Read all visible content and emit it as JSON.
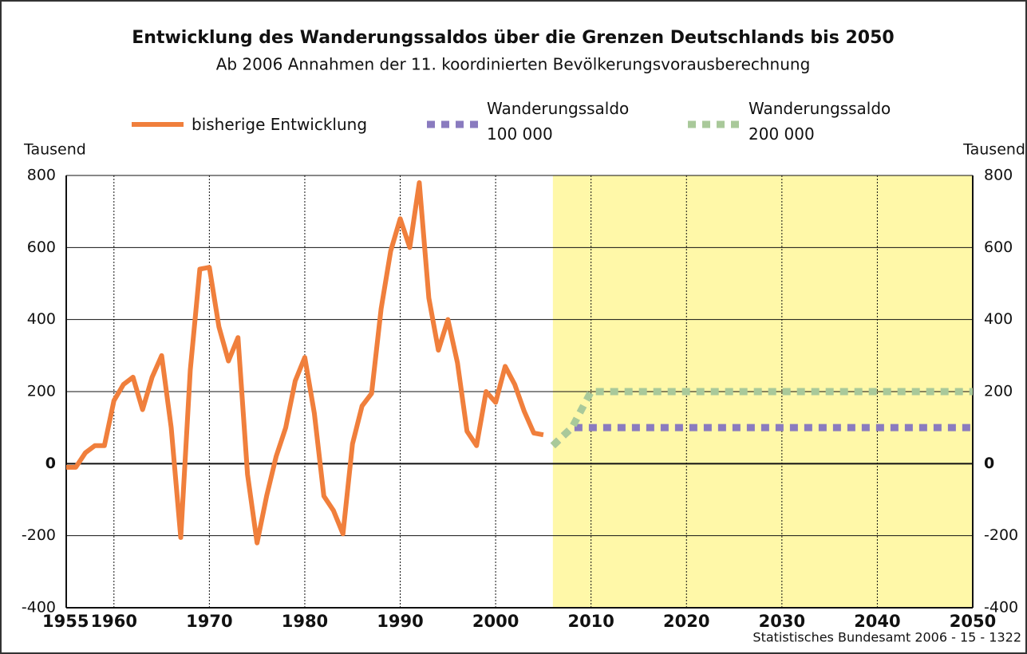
{
  "chart_data": {
    "type": "line",
    "title": "Entwicklung des Wanderungssaldos über die Grenzen Deutschlands bis 2050",
    "subtitle": "Ab 2006 Annahmen der 11. koordinierten Bevölkerungsvorausberechnung",
    "y_label": "Tausend",
    "y2_label": "Tausend",
    "source": "Statistisches Bundesamt 2006 - 15 - 1322",
    "xlim": [
      1955,
      2050
    ],
    "xticks": [
      1955,
      1960,
      1970,
      1980,
      1990,
      2000,
      2010,
      2020,
      2030,
      2040,
      2050
    ],
    "ylim": [
      -400,
      800
    ],
    "yticks": [
      -400,
      -200,
      0,
      200,
      400,
      600,
      800
    ],
    "y2lim": [
      -400,
      800
    ],
    "y2ticks": [
      -400,
      -200,
      0,
      200,
      400,
      600,
      800
    ],
    "grid": true,
    "highlight_xlim": [
      2006,
      2050
    ],
    "highlight_color": "#fff8a8",
    "series": [
      {
        "name": "bisherige Entwicklung",
        "color": "#f07f3c",
        "style": "solid",
        "x": [
          1955,
          1956,
          1957,
          1958,
          1959,
          1960,
          1961,
          1962,
          1963,
          1964,
          1965,
          1966,
          1967,
          1968,
          1969,
          1970,
          1971,
          1972,
          1973,
          1974,
          1975,
          1976,
          1977,
          1978,
          1979,
          1980,
          1981,
          1982,
          1983,
          1984,
          1985,
          1986,
          1987,
          1988,
          1989,
          1990,
          1991,
          1992,
          1993,
          1994,
          1995,
          1996,
          1997,
          1998,
          1999,
          2000,
          2001,
          2002,
          2003,
          2004,
          2005
        ],
        "values": [
          -10,
          -10,
          30,
          50,
          50,
          175,
          220,
          240,
          150,
          240,
          300,
          100,
          -205,
          260,
          540,
          545,
          380,
          285,
          350,
          -30,
          -220,
          -90,
          20,
          100,
          230,
          295,
          140,
          -90,
          -130,
          -195,
          55,
          160,
          195,
          430,
          590,
          680,
          600,
          780,
          460,
          315,
          400,
          280,
          90,
          50,
          200,
          170,
          270,
          220,
          145,
          85,
          80
        ]
      },
      {
        "name": "Wanderungssaldo 100 000",
        "color": "#8a7bbf",
        "style": "dotted",
        "x": [
          2006,
          2008,
          2050
        ],
        "values": [
          50,
          100,
          100
        ]
      },
      {
        "name": "Wanderungssaldo 200 000",
        "color": "#a9c99a",
        "style": "dotted",
        "x": [
          2006,
          2008,
          2010,
          2050
        ],
        "values": [
          50,
          100,
          200,
          200
        ]
      }
    ]
  }
}
